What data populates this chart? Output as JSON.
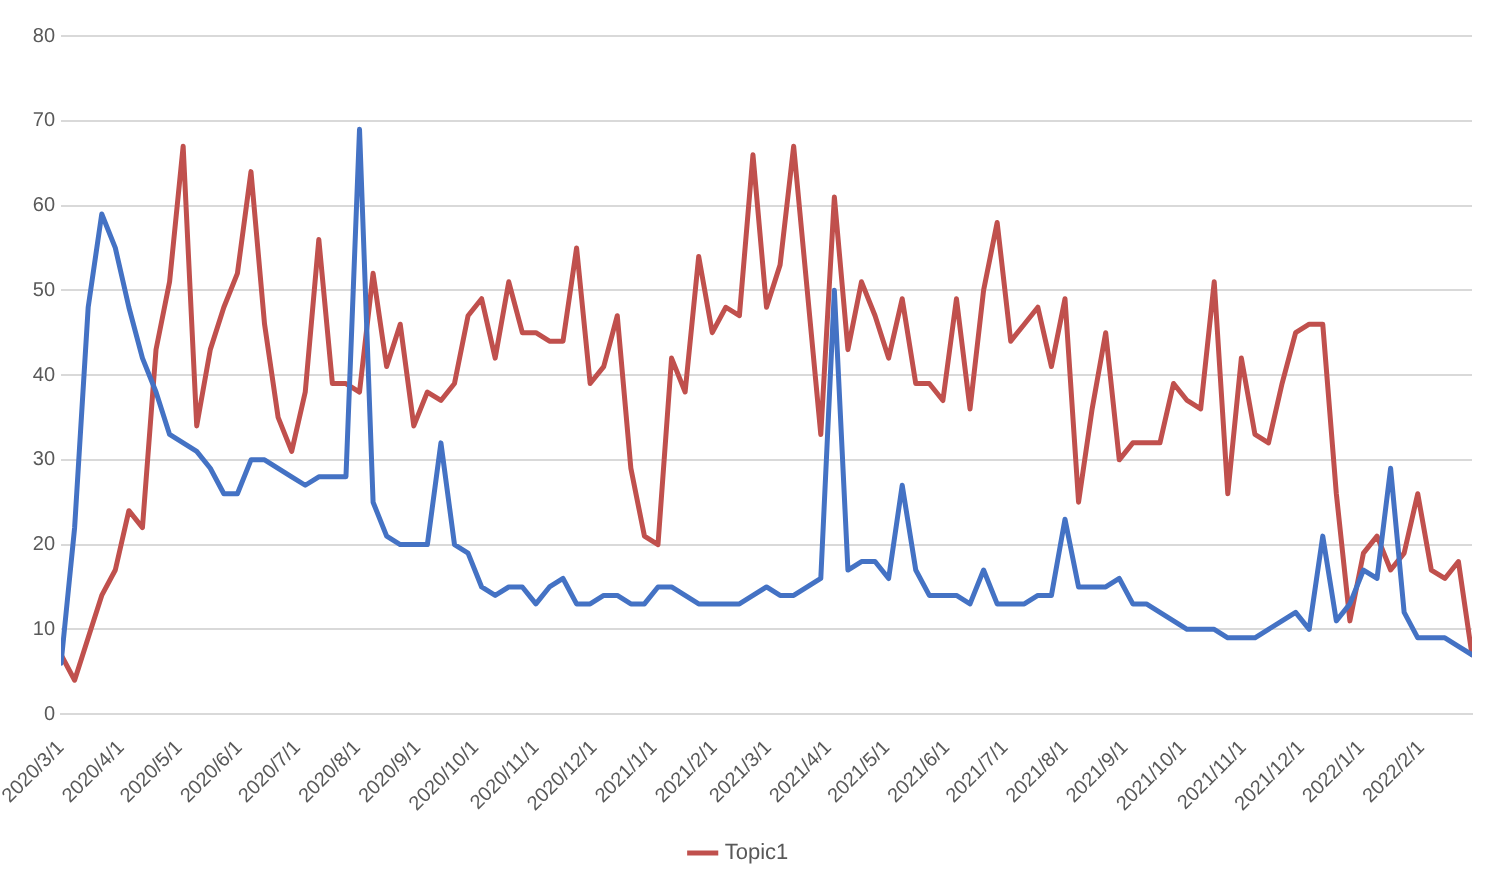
{
  "chart_data": {
    "type": "line",
    "legend": "bottom",
    "grid": "y",
    "marker": "none",
    "line_style": "solid",
    "x": [
      "2020-03-01",
      "2020-03-08",
      "2020-03-15",
      "2020-03-22",
      "2020-03-29",
      "2020-04-05",
      "2020-04-12",
      "2020-04-19",
      "2020-04-26",
      "2020-05-03",
      "2020-05-10",
      "2020-05-17",
      "2020-05-24",
      "2020-05-31",
      "2020-06-07",
      "2020-06-14",
      "2020-06-21",
      "2020-06-28",
      "2020-07-05",
      "2020-07-12",
      "2020-07-19",
      "2020-07-26",
      "2020-08-02",
      "2020-08-09",
      "2020-08-16",
      "2020-08-23",
      "2020-08-30",
      "2020-09-06",
      "2020-09-13",
      "2020-09-20",
      "2020-09-27",
      "2020-10-04",
      "2020-10-11",
      "2020-10-18",
      "2020-10-25",
      "2020-11-01",
      "2020-11-08",
      "2020-11-15",
      "2020-11-22",
      "2020-11-29",
      "2020-12-06",
      "2020-12-13",
      "2020-12-20",
      "2020-12-27",
      "2021-01-03",
      "2021-01-10",
      "2021-01-17",
      "2021-01-24",
      "2021-01-31",
      "2021-02-07",
      "2021-02-14",
      "2021-02-21",
      "2021-02-28",
      "2021-03-07",
      "2021-03-14",
      "2021-03-21",
      "2021-03-28",
      "2021-04-04",
      "2021-04-11",
      "2021-04-18",
      "2021-04-25",
      "2021-05-02",
      "2021-05-09",
      "2021-05-16",
      "2021-05-23",
      "2021-05-30",
      "2021-06-06",
      "2021-06-13",
      "2021-06-20",
      "2021-06-27",
      "2021-07-04",
      "2021-07-11",
      "2021-07-18",
      "2021-07-25",
      "2021-08-01",
      "2021-08-08",
      "2021-08-15",
      "2021-08-22",
      "2021-08-29",
      "2021-09-05",
      "2021-09-12",
      "2021-09-19",
      "2021-09-26",
      "2021-10-03",
      "2021-10-10",
      "2021-10-17",
      "2021-10-24",
      "2021-10-31",
      "2021-11-07",
      "2021-11-14",
      "2021-11-21",
      "2021-11-28",
      "2021-12-05",
      "2021-12-12",
      "2021-12-19",
      "2021-12-26",
      "2022-01-02",
      "2022-01-09",
      "2022-01-16",
      "2022-01-23",
      "2022-01-30",
      "2022-02-06",
      "2022-02-13",
      "2022-02-20",
      "2022-02-27"
    ],
    "xlim": [
      "2020-03-01",
      "2022-02-27"
    ],
    "xticks": [
      {
        "value": "2020-03-01",
        "label": "2020/3/1"
      },
      {
        "value": "2020-04-01",
        "label": "2020/4/1"
      },
      {
        "value": "2020-05-01",
        "label": "2020/5/1"
      },
      {
        "value": "2020-06-01",
        "label": "2020/6/1"
      },
      {
        "value": "2020-07-01",
        "label": "2020/7/1"
      },
      {
        "value": "2020-08-01",
        "label": "2020/8/1"
      },
      {
        "value": "2020-09-01",
        "label": "2020/9/1"
      },
      {
        "value": "2020-10-01",
        "label": "2020/10/1"
      },
      {
        "value": "2020-11-01",
        "label": "2020/11/1"
      },
      {
        "value": "2020-12-01",
        "label": "2020/12/1"
      },
      {
        "value": "2021-01-01",
        "label": "2021/1/1"
      },
      {
        "value": "2021-02-01",
        "label": "2021/2/1"
      },
      {
        "value": "2021-03-01",
        "label": "2021/3/1"
      },
      {
        "value": "2021-04-01",
        "label": "2021/4/1"
      },
      {
        "value": "2021-05-01",
        "label": "2021/5/1"
      },
      {
        "value": "2021-06-01",
        "label": "2021/6/1"
      },
      {
        "value": "2021-07-01",
        "label": "2021/7/1"
      },
      {
        "value": "2021-08-01",
        "label": "2021/8/1"
      },
      {
        "value": "2021-09-01",
        "label": "2021/9/1"
      },
      {
        "value": "2021-10-01",
        "label": "2021/10/1"
      },
      {
        "value": "2021-11-01",
        "label": "2021/11/1"
      },
      {
        "value": "2021-12-01",
        "label": "2021/12/1"
      },
      {
        "value": "2022-01-01",
        "label": "2022/1/1"
      },
      {
        "value": "2022-02-01",
        "label": "2022/2/1"
      }
    ],
    "ylim": [
      0,
      80
    ],
    "yticks": [
      0,
      10,
      20,
      30,
      40,
      50,
      60,
      70,
      80
    ],
    "series": [
      {
        "color": "#4472c4",
        "values": [
          6,
          22,
          48,
          59,
          55,
          48,
          42,
          38,
          33,
          32,
          31,
          29,
          26,
          26,
          30,
          30,
          29,
          28,
          27,
          28,
          28,
          28,
          69,
          25,
          21,
          20,
          20,
          20,
          32,
          20,
          19,
          15,
          14,
          15,
          15,
          13,
          15,
          16,
          13,
          13,
          14,
          14,
          13,
          13,
          15,
          15,
          14,
          13,
          13,
          13,
          13,
          14,
          15,
          14,
          14,
          15,
          16,
          50,
          17,
          18,
          18,
          16,
          27,
          17,
          14,
          14,
          14,
          13,
          17,
          13,
          13,
          13,
          14,
          14,
          23,
          15,
          15,
          15,
          16,
          13,
          13,
          12,
          11,
          10,
          10,
          10,
          9,
          9,
          9,
          10,
          11,
          12,
          10,
          21,
          11,
          13,
          17,
          16,
          29,
          12,
          9,
          9,
          9,
          8,
          7
        ]
      },
      {
        "name": "Topic1",
        "color": "#c0504d",
        "values": [
          7,
          4,
          9,
          14,
          17,
          24,
          22,
          43,
          51,
          67,
          34,
          43,
          48,
          52,
          64,
          46,
          35,
          31,
          38,
          56,
          39,
          39,
          38,
          52,
          41,
          46,
          34,
          38,
          37,
          39,
          47,
          49,
          42,
          51,
          45,
          45,
          44,
          44,
          55,
          39,
          41,
          47,
          29,
          21,
          20,
          42,
          38,
          54,
          45,
          48,
          47,
          66,
          48,
          53,
          67,
          50,
          33,
          61,
          43,
          51,
          47,
          42,
          49,
          39,
          39,
          37,
          49,
          36,
          50,
          58,
          44,
          46,
          48,
          41,
          49,
          25,
          36,
          45,
          30,
          32,
          32,
          32,
          39,
          37,
          36,
          51,
          26,
          42,
          33,
          32,
          39,
          45,
          46,
          46,
          26,
          11,
          19,
          21,
          17,
          19,
          26,
          17,
          16,
          18,
          7
        ]
      }
    ]
  }
}
